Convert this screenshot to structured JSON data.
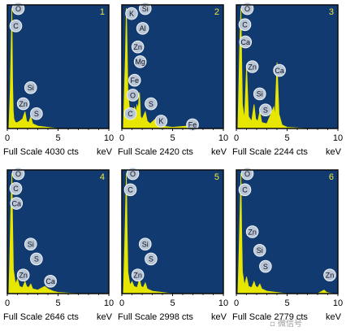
{
  "colors": {
    "plot_bg": "#113a70",
    "frame": "#0b0b0b",
    "spectrum": "#e6e600",
    "label_fill": "#b9c6d6",
    "label_stroke": "#f0f4f8",
    "label_text": "#101020",
    "panel_number": "#f2ea3c",
    "axis_text": "#000000"
  },
  "chart_data": [
    {
      "type": "area",
      "panel_number": "1",
      "xlabel": "keV",
      "xlim": [
        0,
        10
      ],
      "x_ticks": [
        "0",
        "5",
        "10"
      ],
      "full_scale": "Full Scale 4030 cts",
      "series": [
        {
          "x": [
            0.15,
            0.28,
            0.35,
            0.45,
            0.52,
            0.58,
            0.65,
            0.8,
            1.0,
            1.2,
            1.5,
            1.74,
            1.9,
            2.1,
            2.31,
            2.5,
            3.0,
            4.0,
            5.0,
            7.0,
            10.0
          ],
          "y": [
            0,
            30,
            60,
            100,
            40,
            15,
            8,
            5,
            5,
            6,
            8,
            14,
            6,
            5,
            10,
            4,
            2,
            1,
            0,
            0,
            0
          ]
        }
      ],
      "peak_labels": [
        {
          "element": "O",
          "energy": 0.52,
          "label_height": 0.97
        },
        {
          "element": "C",
          "energy": 0.28,
          "label_height": 0.83
        },
        {
          "element": "Si",
          "energy": 1.74,
          "label_height": 0.33
        },
        {
          "element": "Zn",
          "energy": 1.01,
          "label_height": 0.2
        },
        {
          "element": "S",
          "energy": 2.31,
          "label_height": 0.12
        }
      ]
    },
    {
      "type": "area",
      "panel_number": "2",
      "xlabel": "keV",
      "xlim": [
        0,
        10
      ],
      "x_ticks": [
        "0",
        "5",
        "10"
      ],
      "full_scale": "Full Scale 2420 cts",
      "series": [
        {
          "x": [
            0.15,
            0.28,
            0.35,
            0.45,
            0.52,
            0.6,
            0.8,
            1.01,
            1.1,
            1.25,
            1.4,
            1.49,
            1.6,
            1.74,
            1.85,
            2.0,
            2.31,
            2.5,
            2.8,
            3.31,
            3.6,
            4.0,
            5.0,
            6.4,
            6.6,
            7.0,
            10.0
          ],
          "y": [
            0,
            40,
            60,
            100,
            70,
            30,
            12,
            15,
            10,
            18,
            14,
            20,
            16,
            30,
            10,
            8,
            14,
            6,
            4,
            8,
            3,
            2,
            1,
            2,
            1,
            0,
            0
          ]
        }
      ],
      "peak_labels": [
        {
          "element": "K",
          "energy": 0.4,
          "label_height": 0.93
        },
        {
          "element": "Si",
          "energy": 1.74,
          "label_height": 0.97
        },
        {
          "element": "Al",
          "energy": 1.49,
          "label_height": 0.81
        },
        {
          "element": "Zn",
          "energy": 1.01,
          "label_height": 0.66
        },
        {
          "element": "Mg",
          "energy": 1.25,
          "label_height": 0.54
        },
        {
          "element": "Fe",
          "energy": 0.7,
          "label_height": 0.39
        },
        {
          "element": "O",
          "energy": 0.52,
          "label_height": 0.27
        },
        {
          "element": "S",
          "energy": 2.31,
          "label_height": 0.2
        },
        {
          "element": "C",
          "energy": 0.28,
          "label_height": 0.12
        },
        {
          "element": "K",
          "energy": 3.31,
          "label_height": 0.06
        },
        {
          "element": "Fe",
          "energy": 6.4,
          "label_height": 0.03
        }
      ]
    },
    {
      "type": "area",
      "panel_number": "3",
      "xlabel": "keV",
      "xlim": [
        0,
        10
      ],
      "x_ticks": [
        "0",
        "5",
        "10"
      ],
      "full_scale": "Full Scale 2244 cts",
      "series": [
        {
          "x": [
            0.15,
            0.28,
            0.35,
            0.45,
            0.52,
            0.6,
            0.8,
            1.01,
            1.2,
            1.5,
            1.74,
            1.9,
            2.1,
            2.31,
            2.5,
            3.0,
            3.69,
            3.8,
            4.01,
            4.2,
            4.5,
            5.0,
            7.0,
            10.0
          ],
          "y": [
            0,
            50,
            75,
            100,
            60,
            20,
            8,
            52,
            10,
            6,
            20,
            8,
            6,
            14,
            5,
            4,
            18,
            10,
            55,
            12,
            3,
            1,
            0,
            0
          ]
        }
      ],
      "peak_labels": [
        {
          "element": "O",
          "energy": 0.52,
          "label_height": 0.97
        },
        {
          "element": "C",
          "energy": 0.28,
          "label_height": 0.84
        },
        {
          "element": "Ca",
          "energy": 0.34,
          "label_height": 0.7
        },
        {
          "element": "Zn",
          "energy": 1.01,
          "label_height": 0.5
        },
        {
          "element": "Ca",
          "energy": 3.69,
          "label_height": 0.47
        },
        {
          "element": "Si",
          "energy": 1.74,
          "label_height": 0.28
        },
        {
          "element": "S",
          "energy": 2.31,
          "label_height": 0.15
        }
      ]
    },
    {
      "type": "area",
      "panel_number": "4",
      "xlabel": "keV",
      "xlim": [
        0,
        10
      ],
      "x_ticks": [
        "0",
        "5",
        "10"
      ],
      "full_scale": "Full Scale 2646 cts",
      "series": [
        {
          "x": [
            0.15,
            0.28,
            0.34,
            0.45,
            0.52,
            0.6,
            0.8,
            1.01,
            1.2,
            1.5,
            1.74,
            1.9,
            2.1,
            2.31,
            2.5,
            3.0,
            3.69,
            4.0,
            4.5,
            5.0,
            7.0,
            10.0
          ],
          "y": [
            0,
            45,
            70,
            100,
            60,
            20,
            8,
            12,
            6,
            5,
            10,
            6,
            5,
            8,
            4,
            3,
            6,
            4,
            2,
            1,
            0,
            0
          ]
        }
      ],
      "peak_labels": [
        {
          "element": "O",
          "energy": 0.52,
          "label_height": 0.97
        },
        {
          "element": "C",
          "energy": 0.28,
          "label_height": 0.85
        },
        {
          "element": "Ca",
          "energy": 0.34,
          "label_height": 0.73
        },
        {
          "element": "Si",
          "energy": 1.74,
          "label_height": 0.4
        },
        {
          "element": "S",
          "energy": 2.31,
          "label_height": 0.28
        },
        {
          "element": "Zn",
          "energy": 1.01,
          "label_height": 0.15
        },
        {
          "element": "Ca",
          "energy": 3.69,
          "label_height": 0.1
        }
      ]
    },
    {
      "type": "area",
      "panel_number": "5",
      "xlabel": "keV",
      "xlim": [
        0,
        10
      ],
      "x_ticks": [
        "0",
        "5",
        "10"
      ],
      "full_scale": "Full Scale 2998 cts",
      "series": [
        {
          "x": [
            0.15,
            0.28,
            0.35,
            0.45,
            0.52,
            0.6,
            0.8,
            1.01,
            1.2,
            1.5,
            1.74,
            1.9,
            2.1,
            2.31,
            2.5,
            3.0,
            4.0,
            5.0,
            7.0,
            10.0
          ],
          "y": [
            0,
            40,
            65,
            100,
            55,
            18,
            7,
            10,
            6,
            5,
            12,
            6,
            5,
            9,
            4,
            2,
            1,
            0,
            0,
            0
          ]
        }
      ],
      "peak_labels": [
        {
          "element": "O",
          "energy": 0.52,
          "label_height": 0.97
        },
        {
          "element": "C",
          "energy": 0.28,
          "label_height": 0.84
        },
        {
          "element": "Si",
          "energy": 1.74,
          "label_height": 0.4
        },
        {
          "element": "S",
          "energy": 2.31,
          "label_height": 0.28
        },
        {
          "element": "Zn",
          "energy": 1.01,
          "label_height": 0.15
        }
      ]
    },
    {
      "type": "area",
      "panel_number": "6",
      "xlabel": "keV",
      "xlim": [
        0,
        10
      ],
      "x_ticks": [
        "0",
        "5",
        "10"
      ],
      "full_scale": "Full Scale 2779 cts",
      "series": [
        {
          "x": [
            0.15,
            0.28,
            0.35,
            0.45,
            0.52,
            0.6,
            0.8,
            1.01,
            1.2,
            1.5,
            1.74,
            1.9,
            2.1,
            2.31,
            2.5,
            3.0,
            4.0,
            5.0,
            7.0,
            8.0,
            8.64,
            8.9,
            9.5,
            10.0
          ],
          "y": [
            0,
            40,
            65,
            100,
            55,
            18,
            7,
            14,
            6,
            5,
            10,
            6,
            5,
            8,
            4,
            2,
            1,
            0,
            0,
            0,
            3,
            1,
            0,
            0
          ]
        }
      ],
      "peak_labels": [
        {
          "element": "O",
          "energy": 0.52,
          "label_height": 0.97
        },
        {
          "element": "C",
          "energy": 0.28,
          "label_height": 0.84
        },
        {
          "element": "Zn",
          "energy": 1.01,
          "label_height": 0.5
        },
        {
          "element": "Si",
          "energy": 1.74,
          "label_height": 0.35
        },
        {
          "element": "S",
          "energy": 2.31,
          "label_height": 0.22
        },
        {
          "element": "Zn",
          "energy": 8.64,
          "label_height": 0.15
        }
      ]
    }
  ]
}
